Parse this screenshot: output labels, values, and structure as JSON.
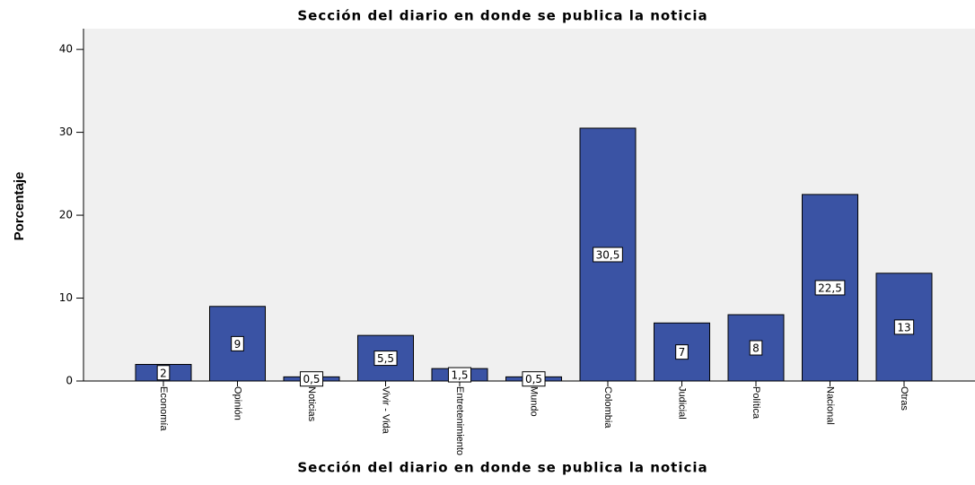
{
  "chart_data": {
    "type": "bar",
    "title": "Sección del diario en donde se publica la noticia",
    "x_label": "Sección del diario en donde se publica la noticia",
    "y_label": "Porcentaje",
    "categories": [
      "Economía",
      "Opinión",
      "Noticias",
      "Vivir - Vida",
      "Entretenimiento",
      "Mundo",
      "Colombia",
      "Judicial",
      "Política",
      "Nacional",
      "Otras"
    ],
    "values": [
      2,
      9,
      0.5,
      5.5,
      1.5,
      0.5,
      30.5,
      7,
      8,
      22.5,
      13
    ],
    "value_labels": [
      "2",
      "9",
      "0,5",
      "5,5",
      "1,5",
      "0,5",
      "30,5",
      "7",
      "8",
      "22,5",
      "13"
    ],
    "color": "#3a53a4",
    "ylim": [
      0,
      42.5
    ],
    "yticks": [
      0,
      10,
      20,
      30,
      40
    ],
    "grid": false
  }
}
